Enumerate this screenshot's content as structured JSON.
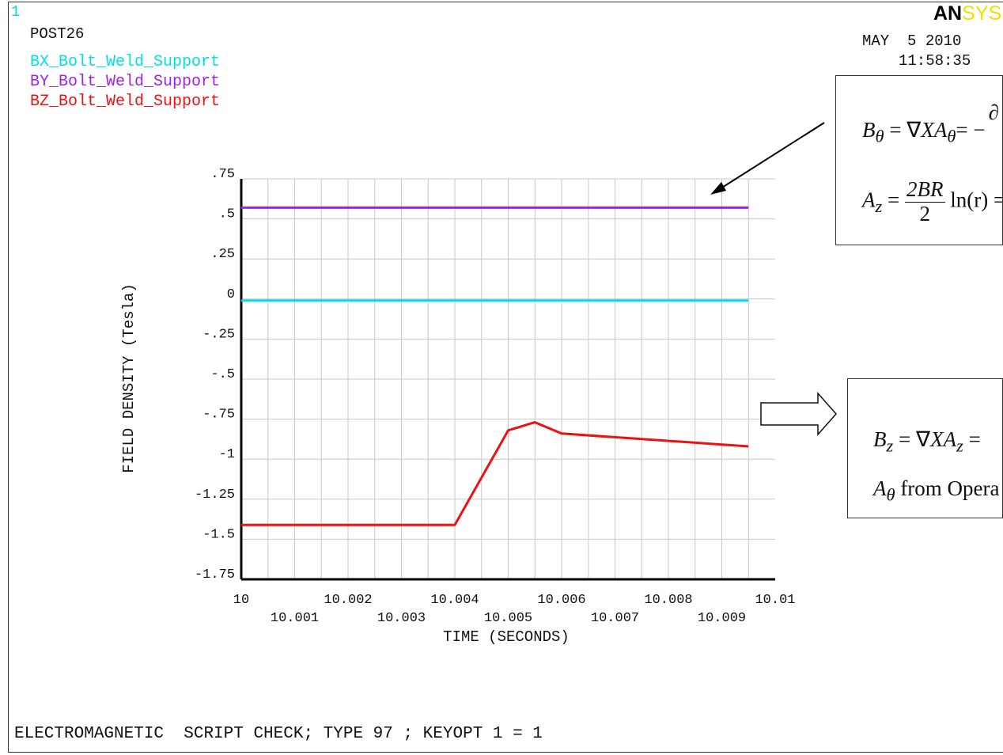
{
  "window_number": "1",
  "module_label": "POST26",
  "brand": {
    "bold": "AN",
    "light": "SYS",
    "bold_color": "#000000",
    "light_color": "#f0e000"
  },
  "date": "MAY  5 2010",
  "time": "11:58:35",
  "footer": "ELECTROMAGNETIC  SCRIPT CHECK; TYPE 97 ; KEYOPT 1 = 1",
  "annotations": {
    "box1": {
      "line1_rhs_partial": "−",
      "line1_cut_glyph": "∂",
      "line2_frac_num": "2BR",
      "line2_frac_den": "2",
      "line2_log": "ln(r) ="
    },
    "box2": {
      "line1_rhs": "=",
      "line2": "from Opera"
    }
  },
  "chart_data": {
    "type": "line",
    "xlabel": "TIME  (SECONDS)",
    "ylabel": "FIELD DENSITY (Tesla)",
    "xlim": [
      10.0,
      10.01
    ],
    "ylim": [
      -1.75,
      0.75
    ],
    "x_ticks_upper": [
      "10",
      "10.002",
      "10.004",
      "10.006",
      "10.008",
      "10.01"
    ],
    "x_ticks_lower": [
      "10.001",
      "10.003",
      "10.005",
      "10.007",
      "10.009"
    ],
    "x_tick_values_upper": [
      10.0,
      10.002,
      10.004,
      10.006,
      10.008,
      10.01
    ],
    "x_tick_values_lower": [
      10.001,
      10.003,
      10.005,
      10.007,
      10.009
    ],
    "y_ticks": [
      ".75",
      ".5",
      ".25",
      "0",
      "-.25",
      "-.5",
      "-.75",
      "-1",
      "-1.25",
      "-1.5",
      "-1.75"
    ],
    "y_tick_values": [
      0.75,
      0.5,
      0.25,
      0,
      -0.25,
      -0.5,
      -0.75,
      -1,
      -1.25,
      -1.5,
      -1.75
    ],
    "grid": true,
    "series": [
      {
        "name": "BX_Bolt_Weld_Support",
        "color": "#00e0e0",
        "x": [
          10.0,
          10.0095
        ],
        "y": [
          -0.01,
          -0.01
        ]
      },
      {
        "name": "BY_Bolt_Weld_Support",
        "color": "#a020f0",
        "x": [
          10.0,
          10.0095
        ],
        "y": [
          0.57,
          0.57
        ]
      },
      {
        "name": "BZ_Bolt_Weld_Support",
        "color": "#ee1111",
        "x": [
          10.0,
          10.004,
          10.005,
          10.0055,
          10.006,
          10.0095
        ],
        "y": [
          -1.41,
          -1.41,
          -0.82,
          -0.77,
          -0.84,
          -0.92
        ]
      }
    ]
  }
}
